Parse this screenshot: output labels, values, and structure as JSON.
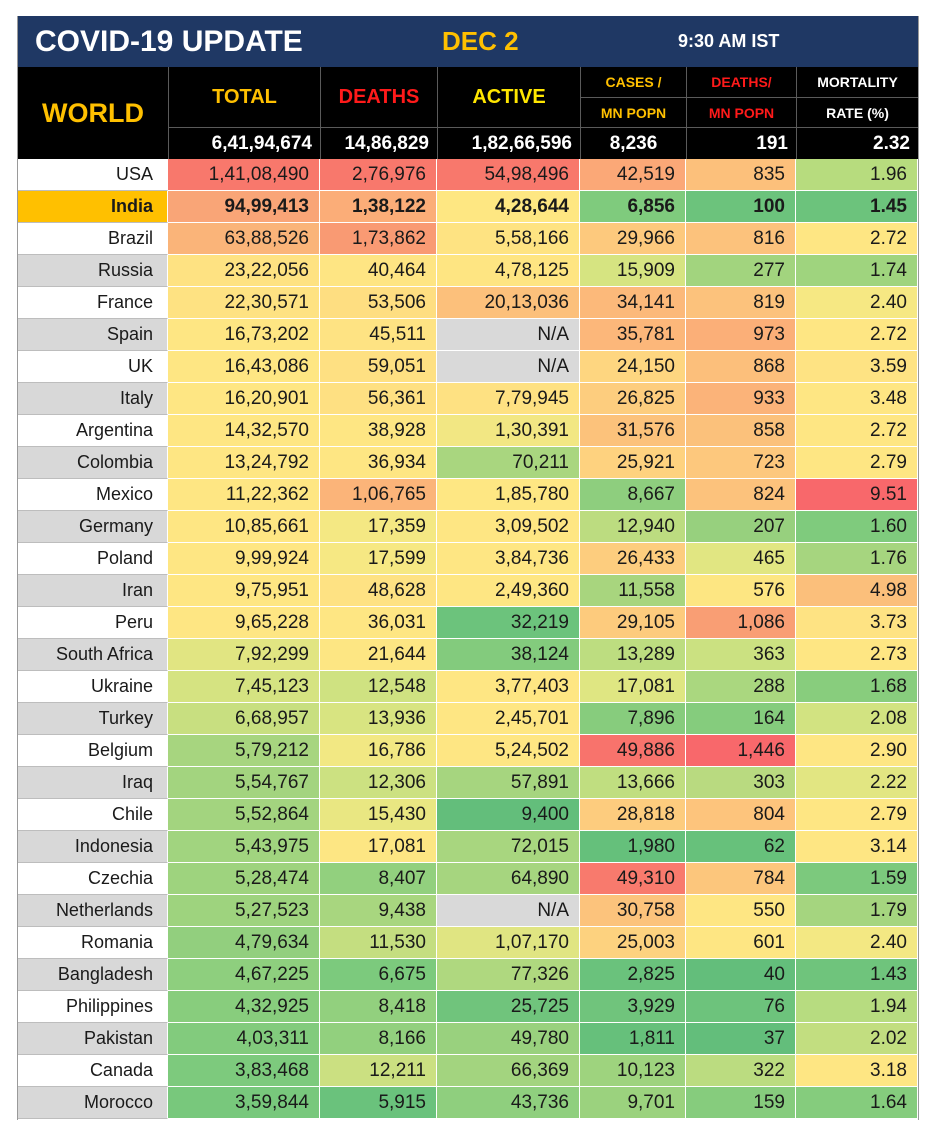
{
  "header": {
    "title": "COVID-19 UPDATE",
    "date": "DEC 2",
    "time": "9:30 AM IST"
  },
  "columns": {
    "region": "WORLD",
    "total": "TOTAL",
    "deaths": "DEATHS",
    "active": "ACTIVE",
    "cases_mn_1": "CASES /",
    "cases_mn_2": "MN POPN",
    "deaths_mn_1": "DEATHS/",
    "deaths_mn_2": "MN POPN",
    "mortality_1": "MORTALITY",
    "mortality_2": "RATE (%)"
  },
  "colors": {
    "title_bg": "#1f3864",
    "gold": "#ffc000",
    "red_label": "#ff1a1a",
    "yellow_label": "#ffe600",
    "name_white": "#ffffff",
    "name_grey": "#d8d8d8",
    "highlight": "#ffc000"
  },
  "world": [
    "6,41,94,674",
    "14,86,829",
    "1,82,66,596",
    "8,236",
    "191",
    "2.32"
  ],
  "rows": [
    {
      "country": "USA",
      "values": [
        "1,41,08,490",
        "2,76,976",
        "54,98,496",
        "42,519",
        "835",
        "1.96"
      ],
      "colors": [
        "#f8786c",
        "#f8786c",
        "#f8786c",
        "#fba877",
        "#fcc07b",
        "#b7dc7e"
      ]
    },
    {
      "country": "India",
      "values": [
        "94,99,413",
        "1,38,122",
        "4,28,644",
        "6,856",
        "100",
        "1.45"
      ],
      "colors": [
        "#f9a577",
        "#fbad78",
        "#fee782",
        "#7fcb7d",
        "#6cc37c",
        "#6cc37c"
      ],
      "highlight": true
    },
    {
      "country": "Brazil",
      "values": [
        "63,88,526",
        "1,73,862",
        "5,58,166",
        "29,966",
        "816",
        "2.72"
      ],
      "colors": [
        "#fab479",
        "#f99a73",
        "#fee382",
        "#fdc97d",
        "#fcc27c",
        "#fee683"
      ]
    },
    {
      "country": "Russia",
      "values": [
        "23,22,056",
        "40,464",
        "4,78,125",
        "15,909",
        "277",
        "1.74"
      ],
      "colors": [
        "#fee282",
        "#fee583",
        "#fee582",
        "#d6e481",
        "#a2d47e",
        "#9fd47e"
      ]
    },
    {
      "country": "France",
      "values": [
        "22,30,571",
        "53,506",
        "20,13,036",
        "34,141",
        "819",
        "2.40"
      ],
      "colors": [
        "#fee282",
        "#fede81",
        "#fcc07b",
        "#fcb97a",
        "#fcc27c",
        "#f6e883"
      ]
    },
    {
      "country": "Spain",
      "values": [
        "16,73,202",
        "45,511",
        "N/A",
        "35,781",
        "973",
        "2.72"
      ],
      "colors": [
        "#fee683",
        "#fee383",
        "#d9d9d9",
        "#fcb77a",
        "#fbaf78",
        "#fee683"
      ]
    },
    {
      "country": "UK",
      "values": [
        "16,43,086",
        "59,051",
        "N/A",
        "24,150",
        "868",
        "3.59"
      ],
      "colors": [
        "#fee683",
        "#fee082",
        "#d9d9d9",
        "#fed680",
        "#fcbf7b",
        "#fee383"
      ]
    },
    {
      "country": "Italy",
      "values": [
        "16,20,901",
        "56,361",
        "7,79,945",
        "26,825",
        "933",
        "3.48"
      ],
      "colors": [
        "#fee683",
        "#fee082",
        "#fee182",
        "#fdcd7e",
        "#fbb379",
        "#fee683"
      ]
    },
    {
      "country": "Argentina",
      "values": [
        "14,32,570",
        "38,928",
        "1,30,391",
        "31,576",
        "858",
        "2.72"
      ],
      "colors": [
        "#fee683",
        "#fee683",
        "#f2e783",
        "#fcc27b",
        "#fbc17b",
        "#fee683"
      ]
    },
    {
      "country": "Colombia",
      "values": [
        "13,24,792",
        "36,934",
        "70,211",
        "25,921",
        "723",
        "2.79"
      ],
      "colors": [
        "#fee683",
        "#fee683",
        "#a9d67f",
        "#fed27f",
        "#fdc87d",
        "#fee683"
      ]
    },
    {
      "country": "Mexico",
      "values": [
        "11,22,362",
        "1,06,765",
        "1,85,780",
        "8,667",
        "824",
        "9.51"
      ],
      "colors": [
        "#fee683",
        "#fbb479",
        "#fee783",
        "#8ece7e",
        "#fcc27c",
        "#f8686b"
      ]
    },
    {
      "country": "Germany",
      "values": [
        "10,85,661",
        "17,359",
        "3,09,502",
        "12,940",
        "207",
        "1.60"
      ],
      "colors": [
        "#fee683",
        "#f4e883",
        "#fee683",
        "#bcdc80",
        "#97d07e",
        "#7fcb7d"
      ]
    },
    {
      "country": "Poland",
      "values": [
        "9,99,924",
        "17,599",
        "3,84,736",
        "26,433",
        "465",
        "1.76"
      ],
      "colors": [
        "#fee683",
        "#f6e883",
        "#fee683",
        "#fdcd7e",
        "#e1e682",
        "#a6d57f"
      ]
    },
    {
      "country": "Iran",
      "values": [
        "9,75,951",
        "48,628",
        "2,49,360",
        "11,558",
        "576",
        "4.98"
      ],
      "colors": [
        "#fee683",
        "#fee283",
        "#fee683",
        "#a8d57e",
        "#fde682",
        "#fbbf7b"
      ]
    },
    {
      "country": "Peru",
      "values": [
        "9,65,228",
        "36,031",
        "32,219",
        "29,105",
        "1,086",
        "3.73"
      ],
      "colors": [
        "#fee683",
        "#fee683",
        "#6cc37c",
        "#fdcb7d",
        "#f99e74",
        "#fee383"
      ]
    },
    {
      "country": "South Africa",
      "values": [
        "7,92,299",
        "21,644",
        "38,124",
        "13,289",
        "363",
        "2.73"
      ],
      "colors": [
        "#e1e582",
        "#fde683",
        "#83cb7d",
        "#bddd80",
        "#cbe181",
        "#fee683"
      ]
    },
    {
      "country": "Ukraine",
      "values": [
        "7,45,123",
        "12,548",
        "3,77,403",
        "17,081",
        "288",
        "1.68"
      ],
      "colors": [
        "#d5e381",
        "#cfe281",
        "#fee683",
        "#dfe682",
        "#aad77f",
        "#88cd7d"
      ]
    },
    {
      "country": "Turkey",
      "values": [
        "6,68,957",
        "13,936",
        "2,45,701",
        "7,896",
        "164",
        "2.08"
      ],
      "colors": [
        "#c8df80",
        "#d8e481",
        "#fee683",
        "#87cc7d",
        "#85cc7d",
        "#d2e381"
      ]
    },
    {
      "country": "Belgium",
      "values": [
        "5,79,212",
        "16,786",
        "5,24,502",
        "49,886",
        "1,446",
        "2.90"
      ],
      "colors": [
        "#a7d57f",
        "#f2e883",
        "#fee683",
        "#f8736c",
        "#f8686b",
        "#fee683"
      ]
    },
    {
      "country": "Iraq",
      "values": [
        "5,54,767",
        "12,306",
        "57,891",
        "13,666",
        "303",
        "2.22"
      ],
      "colors": [
        "#a3d47f",
        "#cce181",
        "#a6d57f",
        "#c0de80",
        "#b9da80",
        "#e2e682"
      ]
    },
    {
      "country": "Chile",
      "values": [
        "5,52,864",
        "15,430",
        "9,400",
        "28,818",
        "804",
        "2.79"
      ],
      "colors": [
        "#a3d47f",
        "#e9e782",
        "#63be7b",
        "#fdcc7e",
        "#fdc47c",
        "#fee683"
      ]
    },
    {
      "country": "Indonesia",
      "values": [
        "5,43,975",
        "17,081",
        "72,015",
        "1,980",
        "62",
        "3.14"
      ],
      "colors": [
        "#a1d47f",
        "#fde683",
        "#a8d67f",
        "#65c07b",
        "#67c17b",
        "#fee683"
      ]
    },
    {
      "country": "Czechia",
      "values": [
        "5,28,474",
        "8,407",
        "64,890",
        "49,310",
        "784",
        "1.59"
      ],
      "colors": [
        "#9ed37e",
        "#92d07e",
        "#a6d57f",
        "#f87a6d",
        "#fcc67c",
        "#7cc97d"
      ]
    },
    {
      "country": "Netherlands",
      "values": [
        "5,27,523",
        "9,438",
        "N/A",
        "30,758",
        "550",
        "1.79"
      ],
      "colors": [
        "#9ed37e",
        "#a8d67f",
        "#d9d9d9",
        "#fcc37c",
        "#fee683",
        "#a5d57f"
      ]
    },
    {
      "country": "Romania",
      "values": [
        "4,79,634",
        "11,530",
        "1,07,170",
        "25,003",
        "601",
        "2.40"
      ],
      "colors": [
        "#92cf7e",
        "#c4de80",
        "#e0e582",
        "#fdd27f",
        "#fee683",
        "#f3e883"
      ]
    },
    {
      "country": "Bangladesh",
      "values": [
        "4,67,225",
        "6,675",
        "77,326",
        "2,825",
        "40",
        "1.43"
      ],
      "colors": [
        "#8ecf7e",
        "#7cca7d",
        "#afd87f",
        "#6ac27c",
        "#63be7b",
        "#6fc47c"
      ]
    },
    {
      "country": "Philippines",
      "values": [
        "4,32,925",
        "8,418",
        "25,725",
        "3,929",
        "76",
        "1.94"
      ],
      "colors": [
        "#88cd7d",
        "#92d07e",
        "#70c47c",
        "#70c47c",
        "#6dc37c",
        "#b7dc80"
      ]
    },
    {
      "country": "Pakistan",
      "values": [
        "4,03,311",
        "8,166",
        "49,780",
        "1,811",
        "37",
        "2.02"
      ],
      "colors": [
        "#82cb7d",
        "#92d07e",
        "#99d17e",
        "#66c07b",
        "#63be7b",
        "#c2de80"
      ]
    },
    {
      "country": "Canada",
      "values": [
        "3,83,468",
        "12,211",
        "66,369",
        "10,123",
        "322",
        "3.18"
      ],
      "colors": [
        "#7dca7d",
        "#cbe081",
        "#a3d47f",
        "#9ed37e",
        "#bbdc80",
        "#fee683"
      ]
    },
    {
      "country": "Morocco",
      "values": [
        "3,59,844",
        "5,915",
        "43,736",
        "9,701",
        "159",
        "1.64"
      ],
      "colors": [
        "#78c87c",
        "#6ac27c",
        "#8fcf7e",
        "#9bd27e",
        "#86cc7d",
        "#85cc7d"
      ]
    }
  ]
}
